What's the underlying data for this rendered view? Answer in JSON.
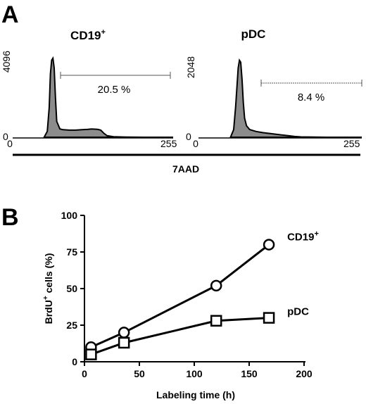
{
  "panel_a": {
    "letter": "A",
    "x_axis_title": "7AAD",
    "histograms": [
      {
        "title_main": "CD19",
        "title_sup": "+",
        "y_max_label": "4096",
        "y_min_label": "0",
        "x_min_label": "0",
        "x_max_label": "255",
        "gate_label": "20.5 %"
      },
      {
        "title_main": "pDC",
        "title_sup": "",
        "y_max_label": "2048",
        "y_min_label": "0",
        "x_min_label": "0",
        "x_max_label": "255",
        "gate_label": "8.4 %"
      }
    ]
  },
  "panel_b": {
    "letter": "B"
  },
  "chart_data": [
    {
      "type": "area",
      "title": "CD19+",
      "xlabel": "7AAD",
      "xlim": [
        0,
        255
      ],
      "ylim": [
        0,
        4096
      ],
      "gate_percent": 20.5,
      "x": [
        50,
        55,
        58,
        60,
        62,
        64,
        66,
        68,
        70,
        75,
        80,
        90,
        100,
        110,
        120,
        125,
        130,
        135,
        140,
        145,
        150,
        160,
        180,
        210,
        255
      ],
      "y": [
        0,
        300,
        1500,
        3200,
        3900,
        4000,
        3500,
        2000,
        800,
        420,
        380,
        360,
        360,
        380,
        400,
        420,
        410,
        400,
        360,
        200,
        80,
        30,
        10,
        0,
        0
      ]
    },
    {
      "type": "area",
      "title": "pDC",
      "xlabel": "7AAD",
      "xlim": [
        0,
        255
      ],
      "ylim": [
        0,
        2048
      ],
      "gate_percent": 8.4,
      "x": [
        50,
        55,
        58,
        62,
        64,
        66,
        68,
        70,
        72,
        75,
        80,
        90,
        100,
        110,
        120,
        130,
        140,
        150,
        160,
        200,
        255
      ],
      "y": [
        0,
        200,
        800,
        1800,
        2000,
        1950,
        1500,
        900,
        500,
        300,
        200,
        150,
        120,
        100,
        80,
        60,
        40,
        20,
        10,
        0,
        0
      ]
    },
    {
      "type": "line",
      "xlabel": "Labeling time (h)",
      "ylabel_main": "BrdU",
      "ylabel_sup": "+",
      "ylabel_rest": " cells (%)",
      "xlim": [
        0,
        200
      ],
      "ylim": [
        0,
        100
      ],
      "xticks": [
        0,
        50,
        100,
        150,
        200
      ],
      "yticks": [
        0,
        25,
        50,
        75,
        100
      ],
      "series": [
        {
          "name": "CD19",
          "name_sup": "+",
          "marker": "circle",
          "x": [
            6,
            36,
            120,
            168
          ],
          "y": [
            10,
            20,
            52,
            80
          ]
        },
        {
          "name": "pDC",
          "name_sup": "",
          "marker": "square",
          "x": [
            6,
            36,
            120,
            168
          ],
          "y": [
            5,
            13,
            28,
            30
          ]
        }
      ]
    }
  ]
}
